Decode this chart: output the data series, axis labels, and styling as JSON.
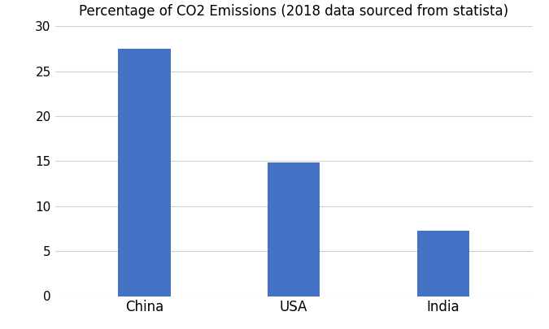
{
  "categories": [
    "China",
    "USA",
    "India"
  ],
  "values": [
    27.5,
    14.9,
    7.3
  ],
  "bar_color": "#4472C4",
  "title": "Percentage of CO2 Emissions (2018 data sourced from statista)",
  "title_fontsize": 12,
  "ylim": [
    0,
    30
  ],
  "yticks": [
    0,
    5,
    10,
    15,
    20,
    25,
    30
  ],
  "background_color": "#ffffff",
  "grid_color": "#d0d0d0",
  "bar_width": 0.35,
  "tick_fontsize": 11,
  "xlabel_fontsize": 12
}
